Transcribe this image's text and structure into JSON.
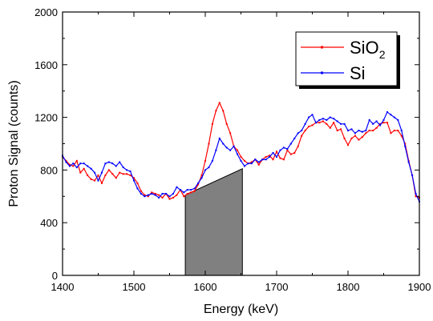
{
  "chart_data": {
    "type": "line",
    "xlabel": "Energy (keV)",
    "ylabel": "Proton Signal (counts)",
    "xlim": [
      1400,
      1900
    ],
    "ylim": [
      0,
      2000
    ],
    "xticks": [
      1400,
      1500,
      1600,
      1700,
      1800,
      1900
    ],
    "yticks": [
      0,
      400,
      800,
      1200,
      1600,
      2000
    ],
    "grid": false,
    "legend_position": "top-right",
    "series": [
      {
        "name": "SiO",
        "name_subscript": "2",
        "color": "#ff0000",
        "marker": "square",
        "x": [
          1400,
          1405,
          1410,
          1415,
          1420,
          1425,
          1430,
          1435,
          1440,
          1445,
          1450,
          1455,
          1460,
          1465,
          1470,
          1475,
          1480,
          1485,
          1490,
          1495,
          1500,
          1505,
          1510,
          1515,
          1520,
          1525,
          1530,
          1535,
          1540,
          1545,
          1550,
          1555,
          1560,
          1565,
          1570,
          1575,
          1580,
          1585,
          1590,
          1595,
          1600,
          1605,
          1610,
          1615,
          1620,
          1625,
          1630,
          1635,
          1640,
          1645,
          1650,
          1655,
          1660,
          1665,
          1670,
          1675,
          1680,
          1685,
          1690,
          1695,
          1700,
          1705,
          1710,
          1715,
          1720,
          1725,
          1730,
          1735,
          1740,
          1745,
          1750,
          1755,
          1760,
          1765,
          1770,
          1775,
          1780,
          1785,
          1790,
          1795,
          1800,
          1805,
          1810,
          1815,
          1820,
          1825,
          1830,
          1835,
          1840,
          1845,
          1850,
          1855,
          1860,
          1865,
          1870,
          1875,
          1880,
          1885,
          1890,
          1895,
          1900
        ],
        "y": [
          900,
          870,
          840,
          830,
          870,
          780,
          810,
          760,
          730,
          720,
          760,
          700,
          760,
          800,
          770,
          740,
          780,
          770,
          770,
          760,
          740,
          700,
          640,
          610,
          600,
          630,
          620,
          610,
          590,
          620,
          580,
          590,
          610,
          650,
          600,
          620,
          630,
          640,
          690,
          760,
          870,
          1000,
          1150,
          1250,
          1310,
          1250,
          1150,
          1080,
          980,
          950,
          900,
          870,
          850,
          860,
          880,
          840,
          880,
          900,
          910,
          880,
          940,
          890,
          880,
          950,
          920,
          930,
          980,
          1060,
          1100,
          1130,
          1140,
          1160,
          1160,
          1170,
          1150,
          1120,
          1160,
          1100,
          1110,
          1040,
          990,
          1040,
          1060,
          1030,
          1050,
          1080,
          1100,
          1100,
          1120,
          1150,
          1160,
          1160,
          1080,
          1100,
          1100,
          1060,
          1000,
          870,
          760,
          600,
          590
        ]
      },
      {
        "name": "Si",
        "name_subscript": "",
        "color": "#0000ff",
        "marker": "circle",
        "x": [
          1400,
          1405,
          1410,
          1415,
          1420,
          1425,
          1430,
          1435,
          1440,
          1445,
          1450,
          1455,
          1460,
          1465,
          1470,
          1475,
          1480,
          1485,
          1490,
          1495,
          1500,
          1505,
          1510,
          1515,
          1520,
          1525,
          1530,
          1535,
          1540,
          1545,
          1550,
          1555,
          1560,
          1565,
          1570,
          1575,
          1580,
          1585,
          1590,
          1595,
          1600,
          1605,
          1610,
          1615,
          1620,
          1625,
          1630,
          1635,
          1640,
          1645,
          1650,
          1655,
          1660,
          1665,
          1670,
          1675,
          1680,
          1685,
          1690,
          1695,
          1700,
          1705,
          1710,
          1715,
          1720,
          1725,
          1730,
          1735,
          1740,
          1745,
          1750,
          1755,
          1760,
          1765,
          1770,
          1775,
          1780,
          1785,
          1790,
          1795,
          1800,
          1805,
          1810,
          1815,
          1820,
          1825,
          1830,
          1835,
          1840,
          1845,
          1850,
          1855,
          1860,
          1865,
          1870,
          1875,
          1880,
          1885,
          1890,
          1895,
          1900
        ],
        "y": [
          910,
          860,
          830,
          850,
          820,
          850,
          850,
          830,
          810,
          780,
          720,
          780,
          850,
          860,
          850,
          830,
          860,
          820,
          800,
          790,
          720,
          660,
          620,
          600,
          610,
          620,
          610,
          590,
          620,
          620,
          600,
          620,
          670,
          650,
          630,
          650,
          650,
          660,
          700,
          740,
          800,
          820,
          870,
          950,
          1040,
          1000,
          970,
          950,
          980,
          920,
          870,
          830,
          850,
          850,
          880,
          860,
          880,
          880,
          900,
          930,
          900,
          950,
          970,
          960,
          1000,
          1040,
          1080,
          1100,
          1150,
          1200,
          1220,
          1160,
          1180,
          1190,
          1180,
          1200,
          1190,
          1170,
          1150,
          1150,
          1100,
          1110,
          1080,
          1100,
          1090,
          1100,
          1180,
          1150,
          1170,
          1140,
          1180,
          1240,
          1220,
          1200,
          1180,
          1100,
          980,
          860,
          760,
          620,
          560
        ]
      }
    ],
    "shaded_region": {
      "fill": "#808080",
      "polygon": [
        [
          1572,
          0
        ],
        [
          1572,
          610
        ],
        [
          1652,
          810
        ],
        [
          1652,
          0
        ]
      ]
    }
  }
}
